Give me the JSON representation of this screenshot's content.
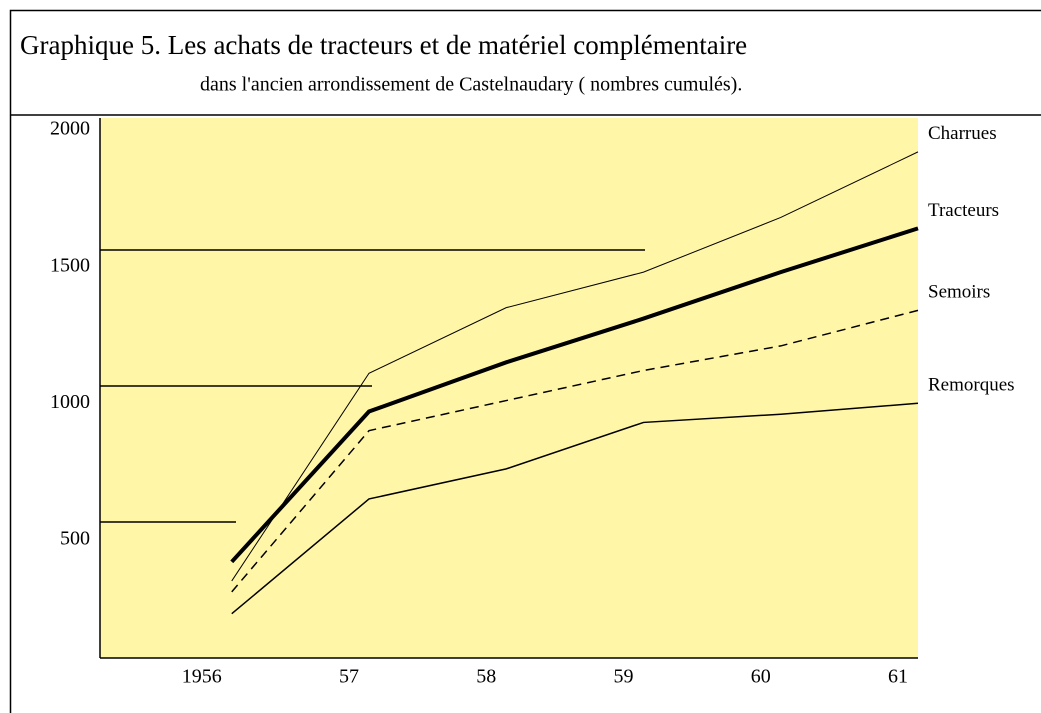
{
  "chart_data": {
    "type": "line",
    "title": "Graphique 5. Les achats de tracteurs et de matériel complémentaire",
    "subtitle": "dans l'ancien arrondissement de Castelnaudary ( nombres cumulés).",
    "x": [
      1956,
      1957,
      1958,
      1959,
      1960,
      1961
    ],
    "xlim": [
      1955.04,
      1961
    ],
    "xticks": [
      {
        "value": 1956,
        "label": "1956"
      },
      {
        "value": 1957,
        "label": "57"
      },
      {
        "value": 1958,
        "label": "58"
      },
      {
        "value": 1959,
        "label": "59"
      },
      {
        "value": 1960,
        "label": "60"
      },
      {
        "value": 1961,
        "label": "61"
      }
    ],
    "ylim": [
      68,
      2044
    ],
    "yticks": [
      500,
      1000,
      1500,
      2000
    ],
    "grid": false,
    "background": "#fff6a8",
    "series": [
      {
        "name": "Charrues",
        "color": "#000000",
        "width": 1,
        "dash": "none",
        "values": [
          350,
          1110,
          1350,
          1480,
          1680,
          1920
        ]
      },
      {
        "name": "Tracteurs",
        "color": "#000000",
        "width": 4,
        "dash": "none",
        "values": [
          420,
          970,
          1150,
          1310,
          1480,
          1640
        ]
      },
      {
        "name": "Semoirs",
        "color": "#000000",
        "width": 1.5,
        "dash": "9 6",
        "values": [
          310,
          900,
          1010,
          1120,
          1210,
          1340
        ]
      },
      {
        "name": "Remorques",
        "color": "#000000",
        "width": 1.5,
        "dash": "none",
        "values": [
          230,
          650,
          760,
          930,
          960,
          1000
        ]
      }
    ]
  }
}
